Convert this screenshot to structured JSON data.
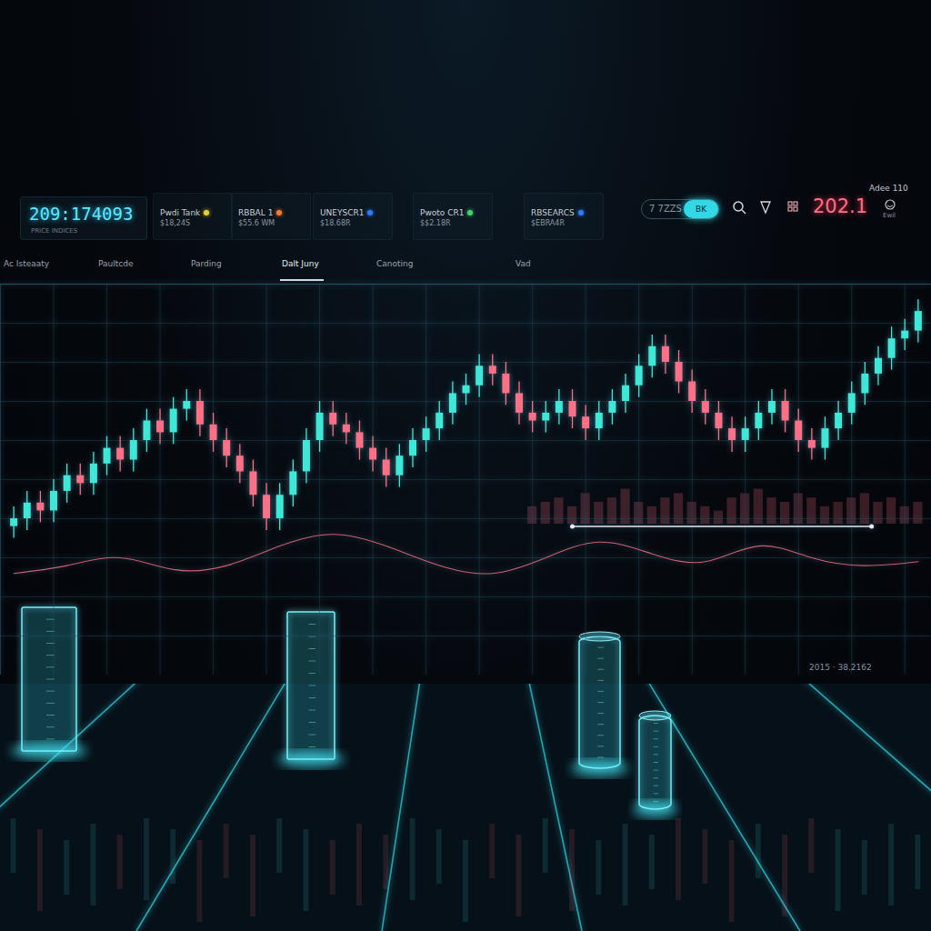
{
  "dashboard": {
    "ticker": {
      "value": "209:174093",
      "label": "PRICE INDICES"
    },
    "panels": [
      {
        "name": "Pwdi Tank",
        "value": "$18,24S",
        "dot": "#e6d22e"
      },
      {
        "name": "RBBAL 1",
        "value": "$55.6 WM",
        "dot": "#ff7a2a"
      },
      {
        "name": "UNEYSCR1",
        "value": "$18.68R",
        "dot": "#2a7bff"
      },
      {
        "name": "Pwoto CR1",
        "value": "$$2.18R",
        "dot": "#3fd46a"
      },
      {
        "name": "RBSEARCS",
        "value": "$EBRA4R",
        "dot": "#2a7bff"
      }
    ],
    "control": {
      "pill": "7 7ZZS",
      "toggle": "BK"
    },
    "price": "202.1",
    "user": {
      "name": "Adee 110",
      "caption": "Ewil"
    },
    "tabs": [
      "Ac Isteaaty",
      "Paultcde",
      "Parding",
      "Dalt Juny",
      "Canoting",
      "Vad"
    ],
    "active_tab": 3,
    "footer_stamp": "2015 · 38.2162"
  },
  "chart_data": {
    "type": "candlestick",
    "x": [
      1,
      2,
      3,
      4,
      5,
      6,
      7,
      8,
      9,
      10,
      11,
      12,
      13,
      14,
      15,
      16,
      17,
      18,
      19,
      20,
      21,
      22,
      23,
      24,
      25,
      26,
      27,
      28,
      29,
      30,
      31,
      32,
      33,
      34,
      35,
      36,
      37,
      38,
      39,
      40,
      41,
      42,
      43,
      44,
      45,
      46,
      47,
      48,
      49,
      50,
      51,
      52,
      53,
      54,
      55,
      56,
      57,
      58,
      59,
      60,
      61,
      62,
      63,
      64,
      65,
      66,
      67,
      68,
      69
    ],
    "open": [
      38,
      40,
      44,
      42,
      47,
      51,
      49,
      54,
      58,
      55,
      60,
      65,
      62,
      68,
      70,
      64,
      60,
      56,
      52,
      46,
      40,
      46,
      52,
      60,
      67,
      64,
      62,
      58,
      55,
      51,
      56,
      60,
      63,
      67,
      72,
      74,
      79,
      77,
      72,
      67,
      65,
      67,
      70,
      66,
      63,
      67,
      70,
      74,
      79,
      84,
      80,
      75,
      70,
      67,
      63,
      60,
      63,
      67,
      70,
      65,
      60,
      58,
      63,
      67,
      72,
      77,
      81,
      86,
      88
    ],
    "close": [
      40,
      44,
      42,
      47,
      51,
      49,
      54,
      58,
      55,
      60,
      65,
      62,
      68,
      70,
      64,
      60,
      56,
      52,
      46,
      40,
      46,
      52,
      60,
      67,
      64,
      62,
      58,
      55,
      51,
      56,
      60,
      63,
      67,
      72,
      74,
      79,
      77,
      72,
      67,
      65,
      67,
      70,
      66,
      63,
      67,
      70,
      74,
      79,
      84,
      80,
      75,
      70,
      67,
      63,
      60,
      63,
      67,
      70,
      65,
      60,
      58,
      63,
      67,
      72,
      77,
      81,
      86,
      88,
      93
    ],
    "high": [
      43,
      47,
      47,
      50,
      54,
      54,
      57,
      61,
      61,
      63,
      68,
      68,
      71,
      73,
      73,
      67,
      63,
      59,
      55,
      49,
      49,
      55,
      63,
      70,
      70,
      67,
      65,
      61,
      58,
      59,
      63,
      66,
      70,
      75,
      77,
      82,
      82,
      80,
      75,
      70,
      70,
      73,
      73,
      69,
      70,
      73,
      77,
      82,
      87,
      87,
      83,
      78,
      73,
      70,
      66,
      66,
      70,
      73,
      73,
      68,
      63,
      66,
      70,
      75,
      80,
      84,
      89,
      91,
      96
    ],
    "low": [
      35,
      37,
      39,
      39,
      44,
      46,
      46,
      51,
      52,
      52,
      57,
      59,
      59,
      65,
      61,
      57,
      53,
      49,
      43,
      37,
      37,
      43,
      49,
      57,
      61,
      59,
      55,
      52,
      48,
      48,
      53,
      57,
      60,
      64,
      69,
      71,
      74,
      69,
      64,
      62,
      62,
      64,
      63,
      60,
      60,
      64,
      67,
      71,
      76,
      77,
      72,
      67,
      64,
      60,
      57,
      57,
      60,
      64,
      62,
      57,
      55,
      55,
      60,
      64,
      69,
      74,
      78,
      83,
      85
    ],
    "colors": [
      "#3de8d6",
      "#3de8d6",
      "#ff6f85",
      "#3de8d6",
      "#3de8d6",
      "#ff6f85",
      "#3de8d6",
      "#3de8d6",
      "#ff6f85",
      "#3de8d6",
      "#3de8d6",
      "#ff6f85",
      "#3de8d6",
      "#3de8d6",
      "#ff6f85",
      "#ff6f85",
      "#ff6f85",
      "#ff6f85",
      "#ff6f85",
      "#ff6f85",
      "#3de8d6",
      "#3de8d6",
      "#3de8d6",
      "#3de8d6",
      "#ff6f85",
      "#ff6f85",
      "#ff6f85",
      "#ff6f85",
      "#ff6f85",
      "#3de8d6",
      "#3de8d6",
      "#3de8d6",
      "#3de8d6",
      "#3de8d6",
      "#3de8d6",
      "#3de8d6",
      "#ff6f85",
      "#ff6f85",
      "#ff6f85",
      "#ff6f85",
      "#3de8d6",
      "#3de8d6",
      "#ff6f85",
      "#ff6f85",
      "#3de8d6",
      "#3de8d6",
      "#3de8d6",
      "#3de8d6",
      "#3de8d6",
      "#ff6f85",
      "#ff6f85",
      "#ff6f85",
      "#ff6f85",
      "#ff6f85",
      "#ff6f85",
      "#3de8d6",
      "#3de8d6",
      "#3de8d6",
      "#ff6f85",
      "#ff6f85",
      "#ff6f85",
      "#3de8d6",
      "#3de8d6",
      "#3de8d6",
      "#3de8d6",
      "#3de8d6",
      "#3de8d6",
      "#3de8d6",
      "#3de8d6"
    ],
    "xlim": [
      0,
      70
    ],
    "ylim": [
      0,
      100
    ],
    "xticks": [
      0,
      4,
      8,
      12,
      16,
      20,
      24,
      28,
      32,
      36,
      40,
      44,
      48,
      52,
      56,
      60,
      64,
      68
    ],
    "yticks": [
      0,
      10,
      20,
      30,
      40,
      50,
      60,
      70,
      80,
      90,
      100
    ],
    "grid": true,
    "tick_labels": false,
    "oscillator": {
      "type": "line",
      "color": "#ff6f85",
      "x": [
        1,
        5,
        9,
        13,
        17,
        21,
        25,
        29,
        33,
        37,
        41,
        45,
        49,
        53,
        57,
        61,
        65,
        69
      ],
      "values": [
        26,
        28,
        30,
        27,
        28,
        33,
        36,
        33,
        28,
        26,
        30,
        34,
        31,
        29,
        33,
        30,
        28,
        29
      ]
    },
    "level_line": {
      "type": "rule",
      "color": "#e8e8f0",
      "value": 38,
      "x": [
        43,
        65.5
      ]
    },
    "volume": {
      "type": "bar",
      "color": "#ff6f85",
      "ylim": [
        0,
        10
      ],
      "x": [
        40,
        41,
        42,
        43,
        44,
        45,
        46,
        47,
        48,
        49,
        50,
        51,
        52,
        53,
        54,
        55,
        56,
        57,
        58,
        59,
        60,
        61,
        62,
        63,
        64,
        65,
        66,
        67,
        68,
        69
      ],
      "values": [
        4,
        5,
        6,
        4,
        7,
        5,
        6,
        8,
        5,
        4,
        6,
        7,
        5,
        4,
        3,
        6,
        7,
        8,
        6,
        5,
        7,
        6,
        4,
        5,
        6,
        7,
        5,
        6,
        4,
        5
      ]
    }
  }
}
